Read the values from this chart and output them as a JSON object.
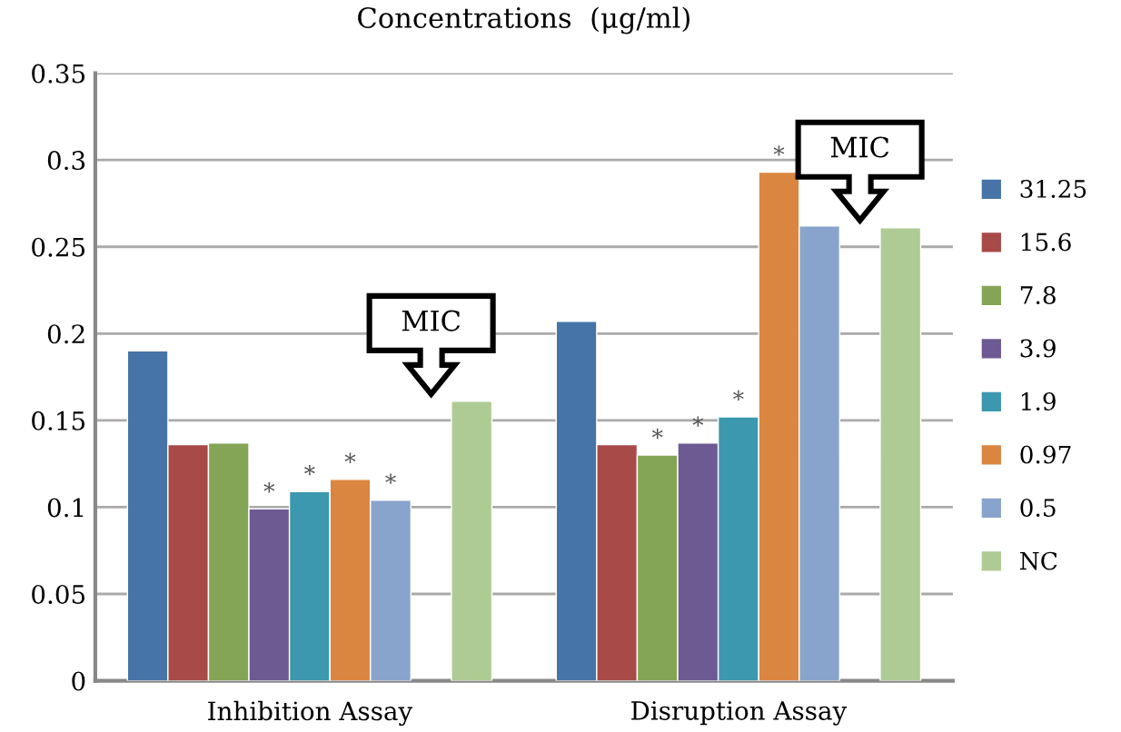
{
  "chart_data": {
    "type": "bar",
    "title": "Concentrations  (μg/ml)",
    "categories": [
      "Inhibition Assay",
      "Disruption Assay"
    ],
    "series": [
      {
        "name": "31.25",
        "color": "#4674a8",
        "values": [
          0.19,
          0.207
        ]
      },
      {
        "name": "15.6",
        "color": "#a84a48",
        "values": [
          0.136,
          0.136
        ]
      },
      {
        "name": "7.8",
        "color": "#84a556",
        "values": [
          0.137,
          0.13
        ],
        "value_labels": [
          null,
          "*"
        ]
      },
      {
        "name": "3.9",
        "color": "#6e5a92",
        "values": [
          0.099,
          0.137
        ],
        "value_labels": [
          "*",
          "*"
        ]
      },
      {
        "name": "1.9",
        "color": "#3b98ae",
        "values": [
          0.109,
          0.152
        ],
        "value_labels": [
          "*",
          "*"
        ]
      },
      {
        "name": "0.97",
        "color": "#db8640",
        "values": [
          0.116,
          0.293
        ],
        "value_labels": [
          "*",
          "*"
        ]
      },
      {
        "name": "0.5",
        "color": "#88a4cc",
        "values": [
          0.104,
          0.262
        ],
        "value_labels": [
          "*",
          null
        ]
      },
      {
        "name": "NC",
        "color": "#aecb94",
        "values": [
          0.161,
          0.261
        ]
      }
    ],
    "ylim": [
      0,
      0.35
    ],
    "yticks": [
      0,
      0.05,
      0.1,
      0.15,
      0.2,
      0.25,
      0.3,
      0.35
    ],
    "grid": "y",
    "legend": "right",
    "annotations": [
      "MIC",
      "MIC"
    ]
  }
}
